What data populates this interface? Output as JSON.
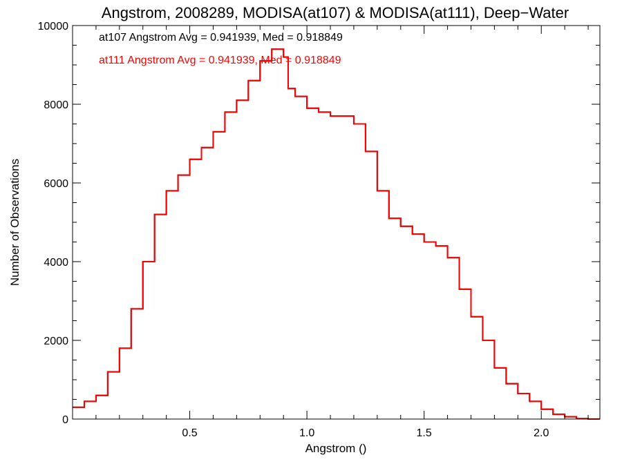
{
  "chart_data": {
    "type": "line",
    "title": "Angstrom, 2008289, MODISA(at107) & MODISA(at111), Deep−Water",
    "xlabel": "Angstrom ()",
    "ylabel": "Number of Observations",
    "xlim": [
      0.0,
      2.25
    ],
    "ylim": [
      0,
      10000
    ],
    "xticks": [
      0.5,
      1.0,
      1.5,
      2.0
    ],
    "xtick_labels": [
      "0.5",
      "1.0",
      "1.5",
      "2.0"
    ],
    "yticks": [
      0,
      2000,
      4000,
      6000,
      8000,
      10000
    ],
    "ytick_labels": [
      "0",
      "2000",
      "4000",
      "6000",
      "8000",
      "10000"
    ],
    "grid": false,
    "legend_placement": "top-left",
    "annotations": [
      {
        "text": "at107 Angstrom Avg = 0.941939, Med = 0.918849",
        "color": "#000000"
      },
      {
        "text": "at111 Angstrom Avg = 0.941939, Med = 0.918849",
        "color": "#ff0000"
      }
    ],
    "series": [
      {
        "color": "#000000",
        "style": "step",
        "x": [
          0.0,
          0.05,
          0.1,
          0.15,
          0.2,
          0.25,
          0.3,
          0.35,
          0.4,
          0.45,
          0.5,
          0.55,
          0.6,
          0.65,
          0.7,
          0.75,
          0.8,
          0.85,
          0.88,
          0.9,
          0.92,
          0.95,
          1.0,
          1.05,
          1.1,
          1.15,
          1.2,
          1.25,
          1.3,
          1.35,
          1.4,
          1.45,
          1.5,
          1.55,
          1.6,
          1.65,
          1.7,
          1.75,
          1.8,
          1.85,
          1.9,
          1.95,
          2.0,
          2.05,
          2.1,
          2.15,
          2.2,
          2.25
        ],
        "y": [
          300,
          450,
          600,
          1200,
          1800,
          2800,
          4000,
          5200,
          5800,
          6200,
          6600,
          6900,
          7300,
          7800,
          8100,
          8600,
          9100,
          9400,
          9400,
          9200,
          8400,
          8200,
          7900,
          7800,
          7700,
          7700,
          7500,
          6800,
          5800,
          5100,
          4900,
          4700,
          4500,
          4400,
          4100,
          3300,
          2600,
          2000,
          1300,
          900,
          650,
          450,
          250,
          120,
          60,
          10,
          0,
          0
        ]
      },
      {
        "color": "#ff0000",
        "style": "step",
        "x": [
          0.0,
          0.05,
          0.1,
          0.15,
          0.2,
          0.25,
          0.3,
          0.35,
          0.4,
          0.45,
          0.5,
          0.55,
          0.6,
          0.65,
          0.7,
          0.75,
          0.8,
          0.85,
          0.88,
          0.9,
          0.92,
          0.95,
          1.0,
          1.05,
          1.1,
          1.15,
          1.2,
          1.25,
          1.3,
          1.35,
          1.4,
          1.45,
          1.5,
          1.55,
          1.6,
          1.65,
          1.7,
          1.75,
          1.8,
          1.85,
          1.9,
          1.95,
          2.0,
          2.05,
          2.1,
          2.15,
          2.2,
          2.25
        ],
        "y": [
          300,
          450,
          600,
          1200,
          1800,
          2800,
          4000,
          5200,
          5800,
          6200,
          6600,
          6900,
          7300,
          7800,
          8100,
          8600,
          9100,
          9400,
          9400,
          9200,
          8400,
          8200,
          7900,
          7800,
          7700,
          7700,
          7500,
          6800,
          5800,
          5100,
          4900,
          4700,
          4500,
          4400,
          4100,
          3300,
          2600,
          2000,
          1300,
          900,
          650,
          450,
          250,
          120,
          60,
          10,
          0,
          0
        ]
      }
    ]
  }
}
